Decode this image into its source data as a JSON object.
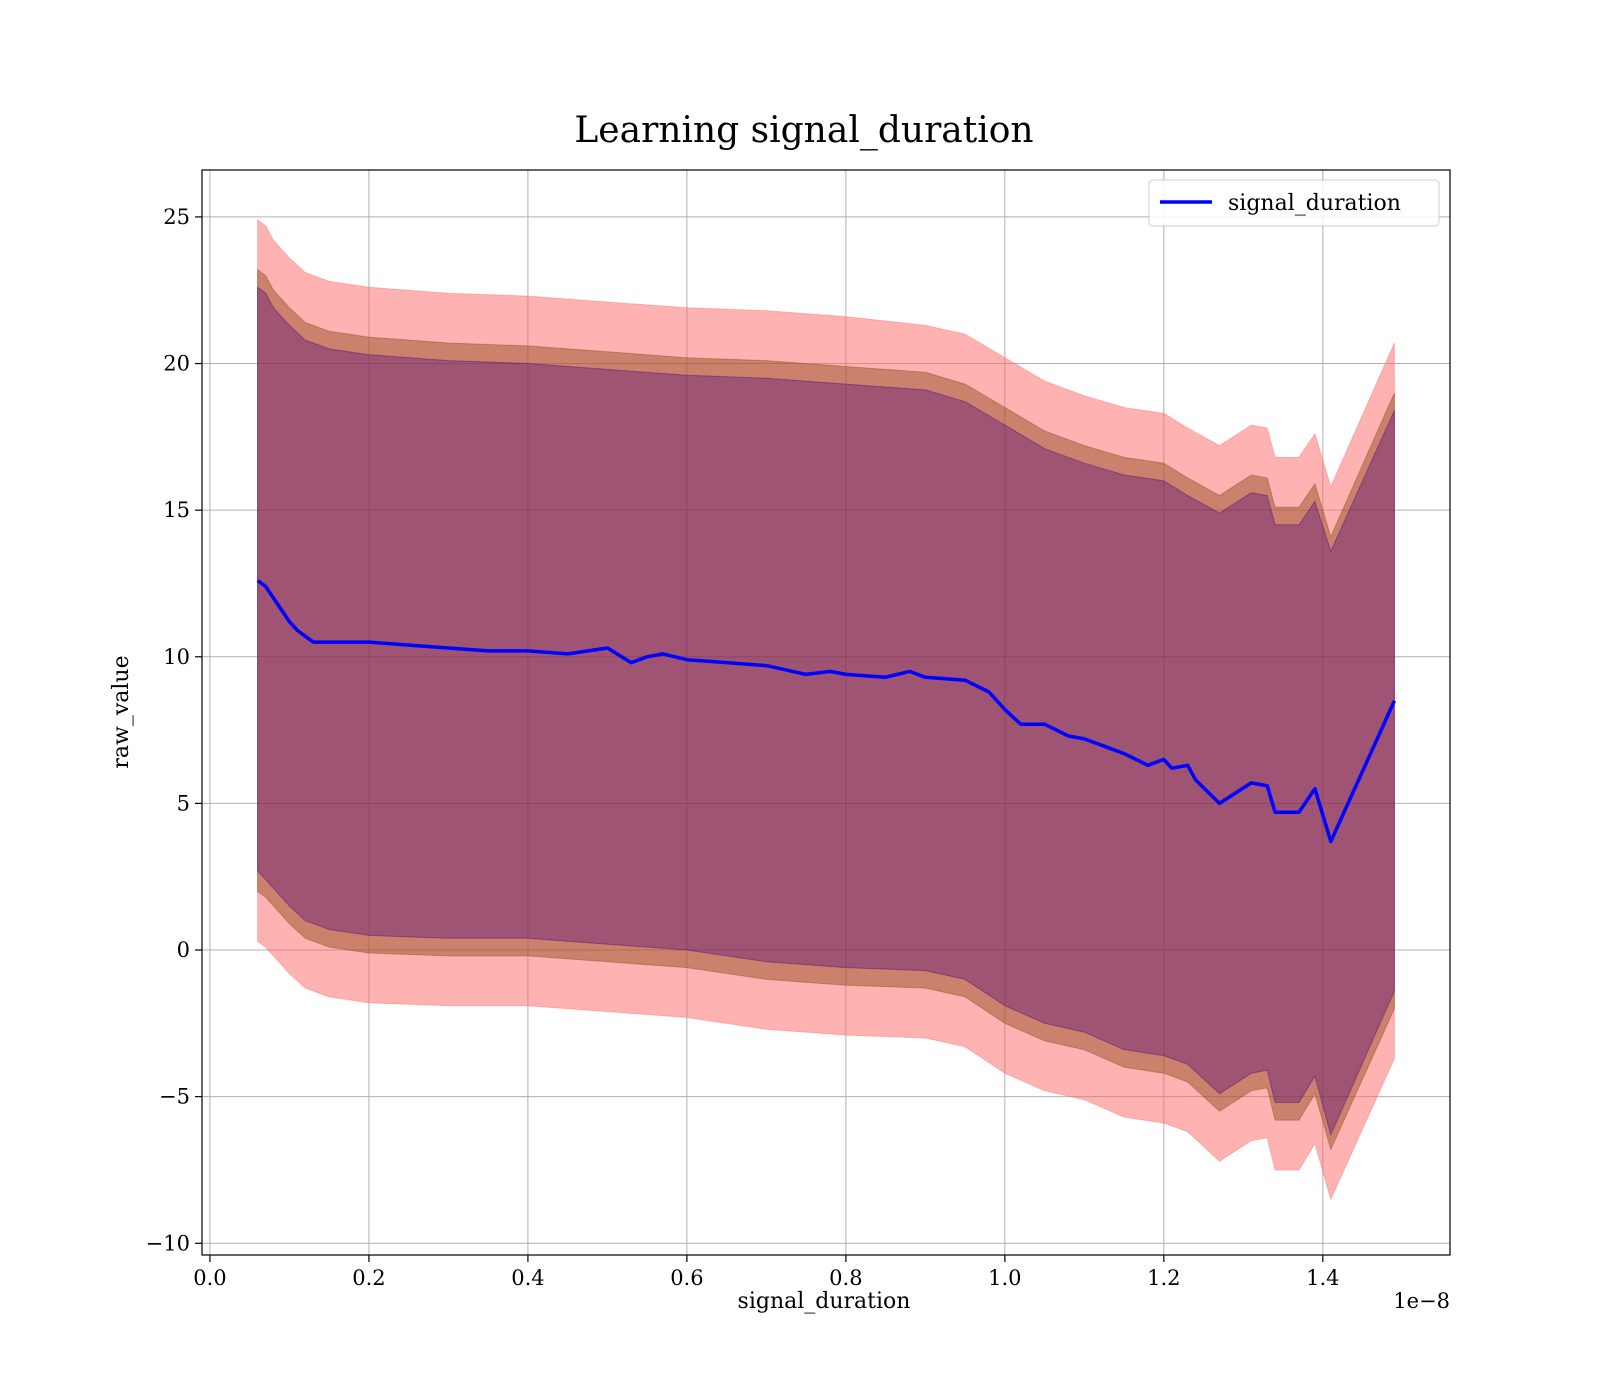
{
  "chart_data": {
    "type": "line",
    "title": "Learning signal_duration",
    "xlabel": "signal_duration",
    "ylabel": "raw_value",
    "x_offset_label": "1e−8",
    "xlim": [
      -0.01,
      1.56
    ],
    "ylim": [
      -10.4,
      26.6
    ],
    "x_ticks": [
      0.0,
      0.2,
      0.4,
      0.6,
      0.8,
      1.0,
      1.2,
      1.4
    ],
    "x_tick_labels": [
      "0.0",
      "0.2",
      "0.4",
      "0.6",
      "0.8",
      "1.0",
      "1.2",
      "1.4"
    ],
    "y_ticks": [
      -10,
      -5,
      0,
      5,
      10,
      15,
      20,
      25
    ],
    "y_tick_labels": [
      "−10",
      "−5",
      "0",
      "5",
      "10",
      "15",
      "20",
      "25"
    ],
    "grid": true,
    "legend_position": "top-right",
    "series": [
      {
        "name": "signal_duration",
        "color": "#0000ff",
        "x": [
          0.06,
          0.07,
          0.08,
          0.09,
          0.1,
          0.11,
          0.12,
          0.13,
          0.15,
          0.18,
          0.2,
          0.25,
          0.3,
          0.35,
          0.4,
          0.45,
          0.5,
          0.53,
          0.55,
          0.57,
          0.6,
          0.65,
          0.7,
          0.75,
          0.78,
          0.8,
          0.85,
          0.88,
          0.9,
          0.95,
          0.98,
          1.0,
          1.02,
          1.05,
          1.08,
          1.1,
          1.13,
          1.15,
          1.18,
          1.2,
          1.21,
          1.23,
          1.24,
          1.27,
          1.31,
          1.33,
          1.34,
          1.37,
          1.39,
          1.41,
          1.49
        ],
        "y": [
          12.6,
          12.4,
          12.0,
          11.6,
          11.2,
          10.9,
          10.7,
          10.5,
          10.5,
          10.5,
          10.5,
          10.4,
          10.3,
          10.2,
          10.2,
          10.1,
          10.3,
          9.8,
          10.0,
          10.1,
          9.9,
          9.8,
          9.7,
          9.4,
          9.5,
          9.4,
          9.3,
          9.5,
          9.3,
          9.2,
          8.8,
          8.2,
          7.7,
          7.7,
          7.3,
          7.2,
          6.9,
          6.7,
          6.3,
          6.5,
          6.2,
          6.3,
          5.8,
          5.0,
          5.7,
          5.6,
          4.7,
          4.7,
          5.5,
          3.7,
          8.5
        ]
      }
    ],
    "bands": [
      {
        "color": "#ff6666",
        "opacity": 0.5,
        "x": [
          0.06,
          0.07,
          0.08,
          0.1,
          0.12,
          0.15,
          0.2,
          0.3,
          0.4,
          0.5,
          0.6,
          0.7,
          0.8,
          0.9,
          0.95,
          1.0,
          1.05,
          1.1,
          1.15,
          1.2,
          1.23,
          1.27,
          1.31,
          1.33,
          1.34,
          1.37,
          1.39,
          1.41,
          1.49
        ],
        "upper": [
          24.9,
          24.7,
          24.2,
          23.6,
          23.1,
          22.8,
          22.6,
          22.4,
          22.3,
          22.1,
          21.9,
          21.8,
          21.6,
          21.3,
          21.0,
          20.2,
          19.4,
          18.9,
          18.5,
          18.3,
          17.8,
          17.2,
          17.9,
          17.8,
          16.8,
          16.8,
          17.6,
          15.8,
          20.7
        ],
        "lower": [
          0.3,
          0.1,
          -0.2,
          -0.8,
          -1.3,
          -1.6,
          -1.8,
          -1.9,
          -1.9,
          -2.1,
          -2.3,
          -2.7,
          -2.9,
          -3.0,
          -3.3,
          -4.2,
          -4.8,
          -5.1,
          -5.7,
          -5.9,
          -6.2,
          -7.2,
          -6.5,
          -6.4,
          -7.5,
          -7.5,
          -6.6,
          -8.5,
          -3.7
        ]
      },
      {
        "color": "#8b4513",
        "opacity": 0.45,
        "x": [
          0.06,
          0.07,
          0.08,
          0.1,
          0.12,
          0.15,
          0.2,
          0.3,
          0.4,
          0.5,
          0.6,
          0.7,
          0.8,
          0.9,
          0.95,
          1.0,
          1.05,
          1.1,
          1.15,
          1.2,
          1.23,
          1.27,
          1.31,
          1.33,
          1.34,
          1.37,
          1.39,
          1.41,
          1.49
        ],
        "upper": [
          23.2,
          23.0,
          22.5,
          21.9,
          21.4,
          21.1,
          20.9,
          20.7,
          20.6,
          20.4,
          20.2,
          20.1,
          19.9,
          19.7,
          19.3,
          18.5,
          17.7,
          17.2,
          16.8,
          16.6,
          16.1,
          15.5,
          16.2,
          16.1,
          15.1,
          15.1,
          15.9,
          14.1,
          19.0
        ],
        "lower": [
          2.0,
          1.8,
          1.5,
          0.9,
          0.4,
          0.1,
          -0.1,
          -0.2,
          -0.2,
          -0.4,
          -0.6,
          -1.0,
          -1.2,
          -1.3,
          -1.6,
          -2.5,
          -3.1,
          -3.4,
          -4.0,
          -4.2,
          -4.5,
          -5.5,
          -4.8,
          -4.7,
          -5.8,
          -5.8,
          -4.9,
          -6.8,
          -2.0
        ]
      },
      {
        "color": "#4b0082",
        "opacity": 0.35,
        "x": [
          0.06,
          0.07,
          0.08,
          0.1,
          0.12,
          0.15,
          0.2,
          0.3,
          0.4,
          0.5,
          0.6,
          0.7,
          0.8,
          0.9,
          0.95,
          1.0,
          1.05,
          1.1,
          1.15,
          1.2,
          1.23,
          1.27,
          1.31,
          1.33,
          1.34,
          1.37,
          1.39,
          1.41,
          1.49
        ],
        "upper": [
          22.6,
          22.4,
          21.9,
          21.3,
          20.8,
          20.5,
          20.3,
          20.1,
          20.0,
          19.8,
          19.6,
          19.5,
          19.3,
          19.1,
          18.7,
          17.9,
          17.1,
          16.6,
          16.2,
          16.0,
          15.5,
          14.9,
          15.6,
          15.5,
          14.5,
          14.5,
          15.3,
          13.6,
          18.4
        ],
        "lower": [
          2.7,
          2.4,
          2.1,
          1.5,
          1.0,
          0.7,
          0.5,
          0.4,
          0.4,
          0.2,
          0.0,
          -0.4,
          -0.6,
          -0.7,
          -1.0,
          -1.9,
          -2.5,
          -2.8,
          -3.4,
          -3.6,
          -3.9,
          -4.9,
          -4.2,
          -4.1,
          -5.2,
          -5.2,
          -4.3,
          -6.3,
          -1.4
        ]
      }
    ]
  }
}
